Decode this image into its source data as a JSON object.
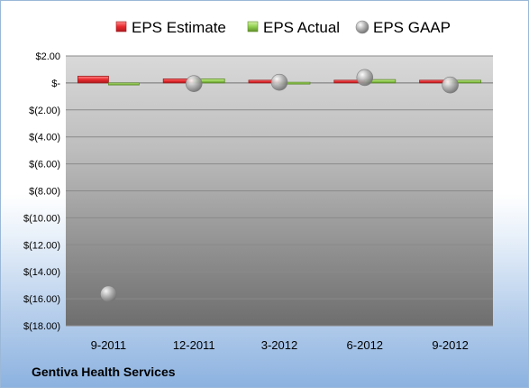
{
  "chart_data": {
    "type": "bar",
    "company": "Gentiva Health Services",
    "categories": [
      "9-2011",
      "12-2011",
      "3-2012",
      "6-2012",
      "9-2012"
    ],
    "series": [
      {
        "name": "EPS Estimate",
        "values": [
          0.5,
          0.3,
          0.2,
          0.2,
          0.2
        ],
        "color": "#e8292e"
      },
      {
        "name": "EPS Actual",
        "values": [
          -0.15,
          0.3,
          0.05,
          0.25,
          0.2
        ],
        "color": "#92d050"
      },
      {
        "name": "EPS GAAP",
        "values": [
          -15.65,
          -0.05,
          0.05,
          0.4,
          -0.15
        ],
        "color": "#a6a6a6"
      }
    ],
    "ylim": [
      -18,
      2
    ],
    "y_ticks": [
      2,
      0,
      -2,
      -4,
      -6,
      -8,
      -10,
      -12,
      -14,
      -16,
      -18
    ],
    "y_tick_labels": [
      "$2.00",
      "$-",
      "$(2.00)",
      "$(4.00)",
      "$(6.00)",
      "$(8.00)",
      "$(10.00)",
      "$(12.00)",
      "$(14.00)",
      "$(16.00)",
      "$(18.00)"
    ],
    "grid": true,
    "legend_position": "top"
  }
}
